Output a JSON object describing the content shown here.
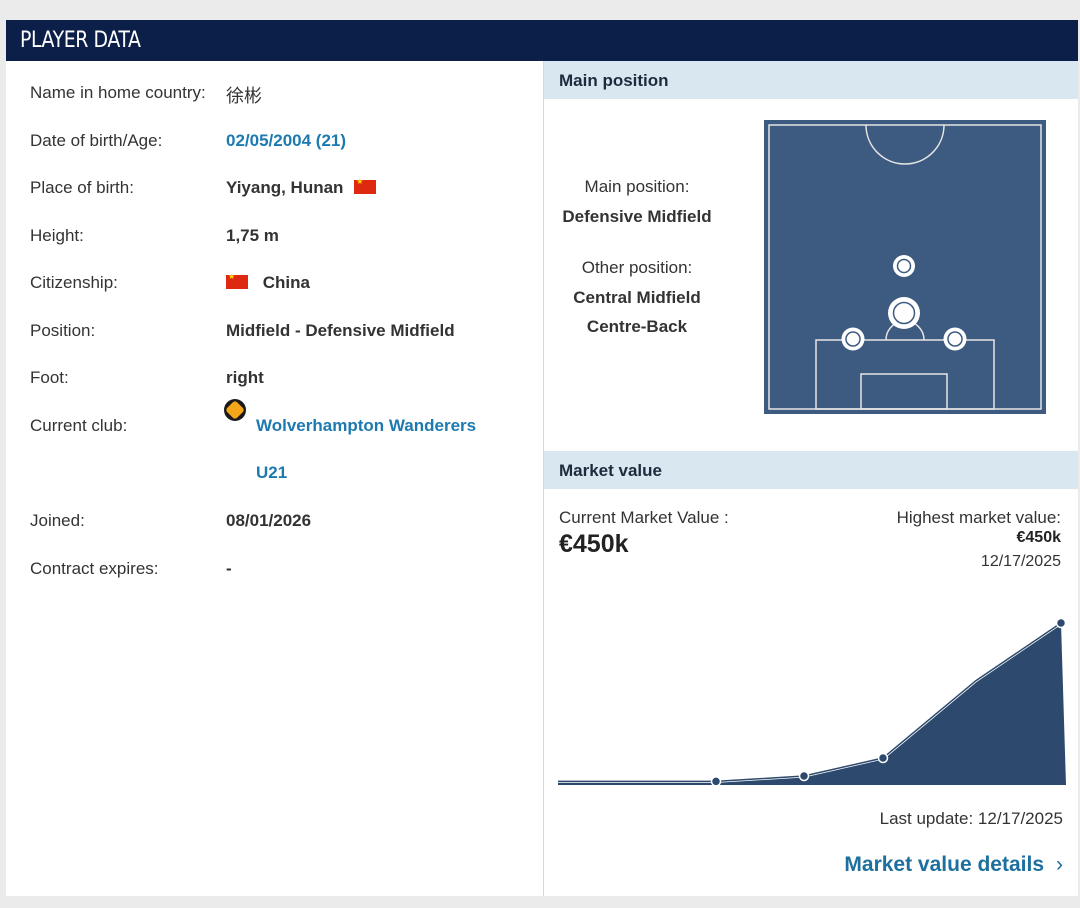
{
  "header": {
    "title": "PLAYER DATA"
  },
  "profile": [
    {
      "label": "Name in home country:",
      "value": "徐彬"
    },
    {
      "label": "Date of birth/Age:",
      "value": "02/05/2004 (21)"
    },
    {
      "label": "Place of birth:",
      "value": "Yiyang, Hunan"
    },
    {
      "label": "Height:",
      "value": "1,75 m"
    },
    {
      "label": "Citizenship:",
      "value": "China"
    },
    {
      "label": "Position:",
      "value": "Midfield - Defensive Midfield"
    },
    {
      "label": "Foot:",
      "value": "right"
    },
    {
      "label": "Current club:",
      "value": "Wolverhampton Wanderers",
      "value2": "U21"
    },
    {
      "label": "Joined:",
      "value": "08/01/2026"
    },
    {
      "label": "Contract expires:",
      "value": "-"
    }
  ],
  "flags": {
    "birth": "china-flag-icon",
    "citizenship": "china-flag-icon",
    "color": "#de2910"
  },
  "club_crest_icon": "wolves-crest-icon",
  "main_position": {
    "section_title": "Main position",
    "main_label": "Main position:",
    "main_value": "Defensive Midfield",
    "other_label": "Other position:",
    "other_values": [
      "Central Midfield",
      "Centre-Back"
    ],
    "pitch_color": "#3d5a80"
  },
  "market_value": {
    "section_title": "Market value",
    "current_label": "Current Market Value :",
    "current_value": "€450k",
    "highest_label": "Highest market value:",
    "highest_value": "€450k",
    "highest_date": "12/17/2025",
    "last_update": "Last update: 12/17/2025",
    "details_link": "Market value details",
    "chevron_icon": "chevron-right-icon"
  },
  "chart_data": {
    "type": "area",
    "title": "",
    "xlabel": "",
    "ylabel": "",
    "grid": false,
    "x": [
      0,
      1,
      2,
      3,
      4,
      5,
      6
    ],
    "values": [
      10,
      10,
      25,
      75,
      290,
      450,
      10
    ],
    "marker_points": [
      1,
      2,
      3,
      5
    ],
    "ylim": [
      0,
      500
    ],
    "color": "#2d4a6e"
  }
}
